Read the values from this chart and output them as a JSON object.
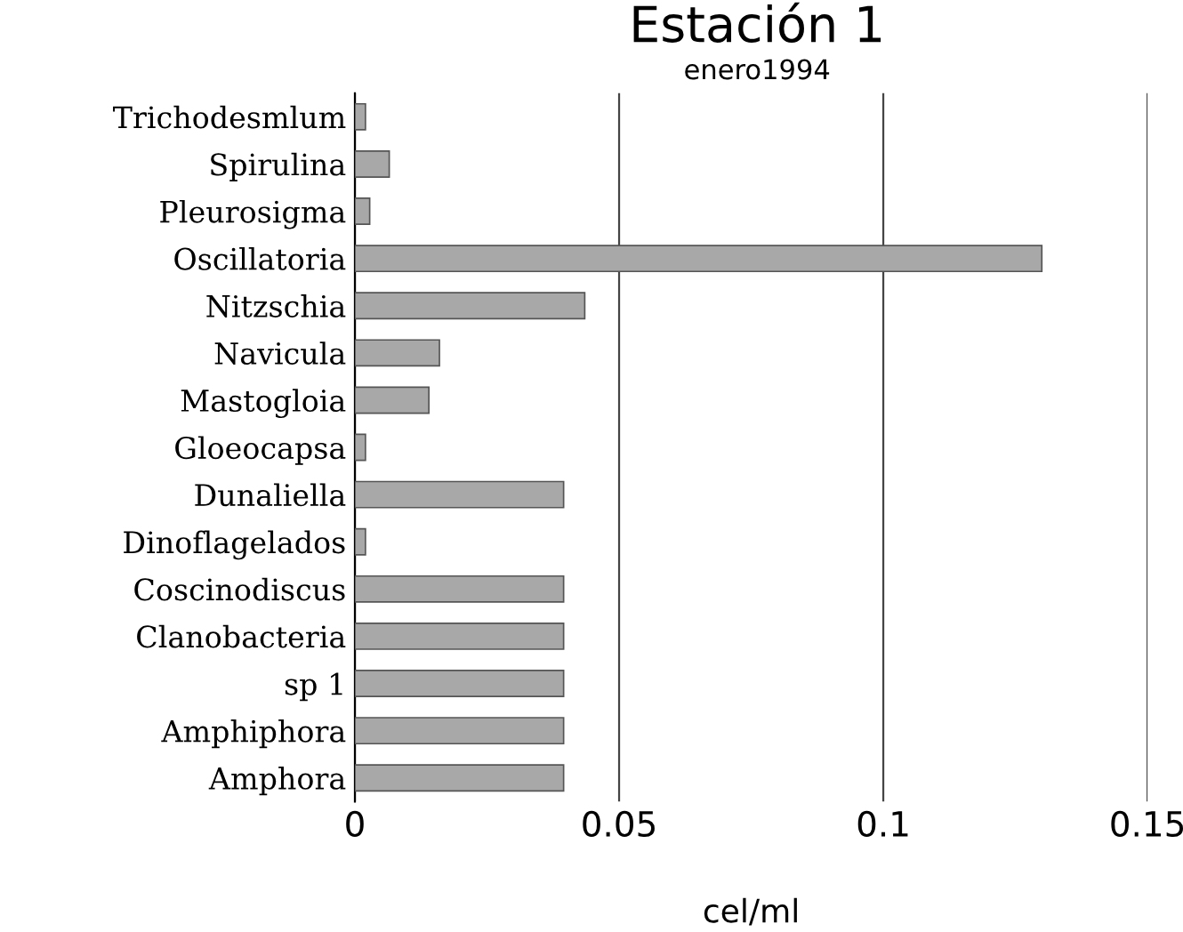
{
  "chart_data": {
    "type": "bar",
    "orientation": "horizontal",
    "title": "Estación 1",
    "subtitle": "enero1994",
    "xlabel": "cel/ml",
    "categories": [
      "Trichodesmlum",
      "Spirulina",
      "Pleurosigma",
      "Oscillatoria",
      "Nitzschia",
      "Navicula",
      "Mastogloia",
      "Gloeocapsa",
      "Dunaliella",
      "Dinoflagelados",
      "Coscinodiscus",
      "Clanobacteria",
      "sp 1",
      "Amphiphora",
      "Amphora"
    ],
    "values": [
      0.002,
      0.0065,
      0.0028,
      0.13,
      0.0435,
      0.016,
      0.014,
      0.002,
      0.0395,
      0.002,
      0.0395,
      0.0395,
      0.0395,
      0.0395,
      0.0395
    ],
    "color": "#a8a8a8",
    "xlim": [
      0,
      0.15
    ],
    "xticks": [
      0,
      0.05,
      0.1,
      0.15
    ],
    "grid": "x"
  }
}
